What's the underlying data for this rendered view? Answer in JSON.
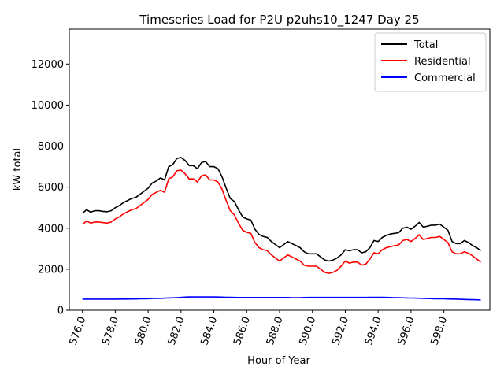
{
  "chart_data": {
    "type": "line",
    "title": "Timeseries Load for P2U p2uhs10_1247  Day 25",
    "xlabel": "Hour of Year",
    "ylabel": "kW total",
    "xlim": [
      575.2,
      600.8
    ],
    "ylim": [
      0,
      13700
    ],
    "xticks": [
      576,
      578,
      580,
      582,
      584,
      586,
      588,
      590,
      592,
      594,
      596,
      598
    ],
    "xtick_labels": [
      "576.0",
      "578.0",
      "580.0",
      "582.0",
      "584.0",
      "586.0",
      "588.0",
      "590.0",
      "592.0",
      "594.0",
      "596.0",
      "598.0"
    ],
    "yticks": [
      0,
      2000,
      4000,
      6000,
      8000,
      10000,
      12000
    ],
    "ytick_labels": [
      "0",
      "2000",
      "4000",
      "6000",
      "8000",
      "10000",
      "12000"
    ],
    "legend_position": "top-right",
    "x_start": 576.0,
    "x_step": 0.25,
    "series": [
      {
        "name": "Total",
        "color": "#000000",
        "values": [
          4720,
          4900,
          4780,
          4850,
          4850,
          4820,
          4800,
          4850,
          5000,
          5100,
          5250,
          5350,
          5450,
          5500,
          5650,
          5800,
          5950,
          6200,
          6300,
          6450,
          6350,
          7000,
          7100,
          7400,
          7450,
          7300,
          7050,
          7050,
          6900,
          7200,
          7250,
          7000,
          7000,
          6900,
          6500,
          5950,
          5450,
          5300,
          4900,
          4550,
          4450,
          4400,
          3950,
          3700,
          3600,
          3550,
          3350,
          3200,
          3050,
          3200,
          3350,
          3250,
          3150,
          3050,
          2850,
          2750,
          2750,
          2750,
          2600,
          2450,
          2400,
          2450,
          2550,
          2700,
          2950,
          2900,
          2950,
          2950,
          2800,
          2850,
          3050,
          3400,
          3350,
          3550,
          3650,
          3720,
          3750,
          3780,
          4000,
          4050,
          3950,
          4100,
          4280,
          4050,
          4100,
          4150,
          4150,
          4200,
          4050,
          3900,
          3350,
          3250,
          3250,
          3400,
          3300,
          3150,
          3050,
          2900
        ]
      },
      {
        "name": "Residential",
        "color": "#ff0000",
        "values": [
          4180,
          4350,
          4250,
          4300,
          4300,
          4270,
          4250,
          4300,
          4450,
          4550,
          4700,
          4800,
          4900,
          4950,
          5100,
          5250,
          5400,
          5650,
          5750,
          5850,
          5750,
          6400,
          6500,
          6800,
          6830,
          6650,
          6400,
          6400,
          6250,
          6550,
          6600,
          6350,
          6350,
          6250,
          5900,
          5350,
          4850,
          4650,
          4250,
          3900,
          3800,
          3750,
          3300,
          3050,
          2950,
          2900,
          2700,
          2550,
          2400,
          2550,
          2700,
          2600,
          2500,
          2400,
          2200,
          2150,
          2150,
          2150,
          2000,
          1850,
          1800,
          1850,
          1950,
          2150,
          2400,
          2300,
          2350,
          2350,
          2200,
          2250,
          2500,
          2800,
          2750,
          2950,
          3050,
          3100,
          3150,
          3180,
          3400,
          3450,
          3350,
          3500,
          3680,
          3450,
          3500,
          3550,
          3550,
          3600,
          3450,
          3300,
          2850,
          2750,
          2750,
          2850,
          2780,
          2650,
          2500,
          2350
        ]
      },
      {
        "name": "Commercial",
        "color": "#0000ff",
        "values": [
          540,
          540,
          540,
          540,
          540,
          540,
          540,
          540,
          540,
          545,
          545,
          545,
          550,
          550,
          555,
          560,
          565,
          570,
          575,
          580,
          590,
          600,
          605,
          615,
          625,
          640,
          650,
          650,
          650,
          650,
          650,
          650,
          650,
          645,
          640,
          635,
          630,
          625,
          620,
          620,
          620,
          620,
          620,
          620,
          620,
          620,
          620,
          620,
          620,
          620,
          620,
          615,
          615,
          615,
          620,
          625,
          625,
          625,
          625,
          625,
          625,
          625,
          625,
          625,
          625,
          625,
          625,
          625,
          625,
          625,
          630,
          630,
          630,
          630,
          625,
          620,
          615,
          610,
          605,
          600,
          595,
          590,
          585,
          575,
          570,
          565,
          560,
          560,
          555,
          550,
          545,
          540,
          535,
          525,
          520,
          515,
          510,
          500
        ]
      }
    ]
  }
}
